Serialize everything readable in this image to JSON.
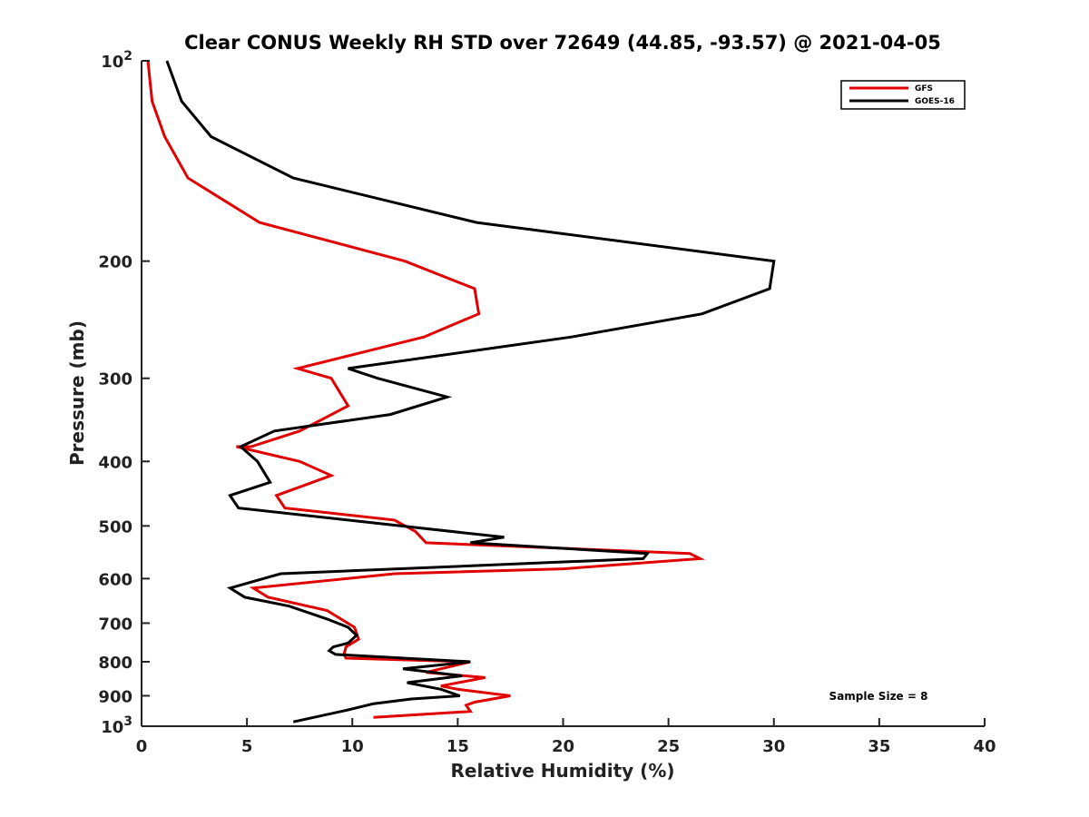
{
  "chart_data": {
    "type": "line",
    "title": "Clear CONUS Weekly RH STD over 72649 (44.85, -93.57) @ 2021-04-05",
    "xlabel": "Relative Humidity (%)",
    "ylabel": "Pressure (mb)",
    "xlim": [
      0,
      40
    ],
    "ylim": [
      100,
      1000
    ],
    "yscale": "log",
    "y_reversed": true,
    "grid": false,
    "legend_position": "top-right",
    "x_ticks": [
      "0",
      "5",
      "10",
      "15",
      "20",
      "25",
      "30",
      "35",
      "40"
    ],
    "x_tick_values": [
      0,
      5,
      10,
      15,
      20,
      25,
      30,
      35,
      40
    ],
    "y_ticks": [
      {
        "base": "10",
        "exp": "2",
        "value": 100
      },
      {
        "base": "200",
        "exp": "",
        "value": 200
      },
      {
        "base": "300",
        "exp": "",
        "value": 300
      },
      {
        "base": "400",
        "exp": "",
        "value": 400
      },
      {
        "base": "500",
        "exp": "",
        "value": 500
      },
      {
        "base": "600",
        "exp": "",
        "value": 600
      },
      {
        "base": "700",
        "exp": "",
        "value": 700
      },
      {
        "base": "800",
        "exp": "",
        "value": 800
      },
      {
        "base": "900",
        "exp": "",
        "value": 900
      },
      {
        "base": "10",
        "exp": "3",
        "value": 1000
      }
    ],
    "series": [
      {
        "name": "GFS",
        "color": "#e00000",
        "x": [
          0.3,
          0.5,
          1.1,
          2.2,
          5.6,
          12.5,
          15.8,
          16.0,
          13.4,
          7.4,
          9.0,
          9.8,
          7.5,
          5.2,
          4.5,
          7.5,
          9.0,
          6.4,
          6.8,
          12.0,
          13.0,
          13.5,
          26.0,
          26.5,
          20.0,
          12.0,
          5.3,
          6.0,
          8.8,
          10.1,
          10.3,
          9.7,
          9.6,
          9.7,
          15.6,
          13.5,
          16.3,
          14.2,
          15.0,
          17.5,
          15.8,
          15.4,
          15.6,
          11.0
        ],
        "y": [
          100,
          115,
          130,
          150,
          175,
          200,
          220,
          240,
          260,
          290,
          300,
          330,
          360,
          380,
          380,
          400,
          420,
          450,
          470,
          490,
          510,
          530,
          550,
          560,
          580,
          590,
          620,
          640,
          670,
          710,
          740,
          760,
          780,
          790,
          800,
          830,
          845,
          870,
          880,
          900,
          920,
          930,
          950,
          970
        ]
      },
      {
        "name": "GOES-16",
        "color": "#000000",
        "x": [
          1.2,
          1.9,
          3.3,
          7.2,
          15.9,
          30.0,
          29.8,
          26.6,
          20.4,
          9.8,
          11.2,
          14.5,
          11.8,
          6.3,
          4.7,
          5.5,
          6.1,
          4.2,
          4.6,
          17.2,
          15.6,
          24.0,
          23.8,
          6.6,
          4.2,
          4.9,
          7.0,
          8.8,
          9.8,
          10.2,
          9.8,
          9.1,
          8.9,
          9.2,
          15.6,
          12.4,
          15.2,
          12.6,
          14.2,
          15.1,
          12.8,
          11.0,
          9.8,
          7.2
        ],
        "y": [
          100,
          115,
          130,
          150,
          175,
          200,
          220,
          240,
          260,
          290,
          300,
          320,
          340,
          360,
          380,
          400,
          430,
          450,
          470,
          520,
          530,
          550,
          560,
          590,
          620,
          640,
          660,
          690,
          710,
          730,
          750,
          760,
          770,
          780,
          800,
          820,
          840,
          860,
          880,
          900,
          910,
          925,
          945,
          985
        ]
      }
    ],
    "annotation": "Sample Size = 8"
  }
}
